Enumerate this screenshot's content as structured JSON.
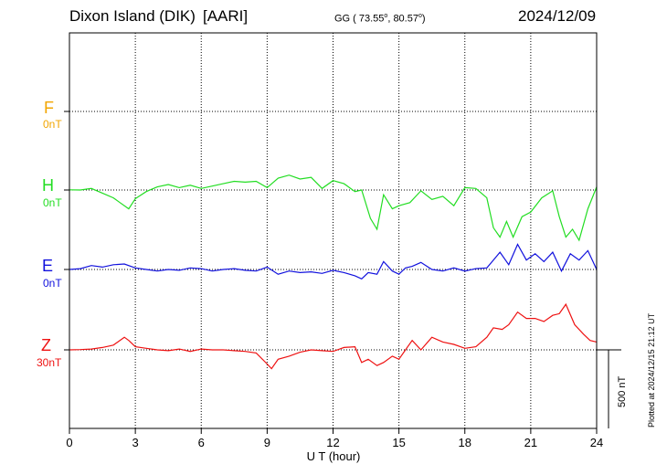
{
  "header": {
    "station": "Dixon Island (DIK)",
    "institute": "[AARI]",
    "coords_prefix": "GG ( 73.55",
    "deg1": "o",
    "coords_mid": ",  80.57",
    "deg2": "o",
    "coords_suffix": ")",
    "date": "2024/12/09"
  },
  "credit": "Plotted at 2024/12/15 21:12 UT",
  "colors": {
    "F": "#f2a500",
    "H": "#22dd22",
    "E": "#1111dd",
    "Z": "#ee1111"
  },
  "chart_data": {
    "type": "line",
    "xlabel": "U T (hour)",
    "xlim": [
      0,
      24
    ],
    "xticks": [
      "0",
      "3",
      "6",
      "9",
      "12",
      "15",
      "18",
      "21",
      "24"
    ],
    "grid": true,
    "scale_bar": "500 nT",
    "series": [
      {
        "name": "F",
        "baseline": "0nT",
        "color": "#f2a500",
        "x": [],
        "y": []
      },
      {
        "name": "H",
        "baseline": "0nT",
        "color": "#22dd22",
        "x": [
          0,
          0.5,
          1,
          1.5,
          2,
          2.3,
          2.7,
          3,
          3.5,
          4,
          4.5,
          5,
          5.5,
          6,
          6.5,
          7,
          7.5,
          8,
          8.5,
          9,
          9.5,
          10,
          10.5,
          11,
          11.5,
          12,
          12.5,
          13,
          13.3,
          13.7,
          14,
          14.3,
          14.7,
          15,
          15.5,
          16,
          16.5,
          17,
          17.5,
          18,
          18.5,
          19,
          19.3,
          19.6,
          19.9,
          20.2,
          20.6,
          21,
          21.5,
          22,
          22.3,
          22.6,
          22.9,
          23.2,
          23.6,
          24
        ],
        "y": [
          1,
          0,
          10,
          -20,
          -50,
          -80,
          -120,
          -55,
          -10,
          20,
          35,
          15,
          30,
          10,
          25,
          40,
          55,
          50,
          55,
          15,
          75,
          95,
          70,
          80,
          10,
          60,
          40,
          -10,
          0,
          -180,
          -250,
          -30,
          -120,
          -100,
          -80,
          -5,
          -60,
          -40,
          -100,
          15,
          10,
          -50,
          -240,
          -300,
          -200,
          -300,
          -170,
          -140,
          -50,
          -5,
          -170,
          -300,
          -250,
          -320,
          -120,
          20
        ]
      },
      {
        "name": "E",
        "baseline": "0nT",
        "color": "#1111dd",
        "x": [
          0,
          0.5,
          1,
          1.5,
          2,
          2.5,
          3,
          3.5,
          4,
          4.5,
          5,
          5.5,
          6,
          6.5,
          7,
          7.5,
          8,
          8.5,
          9,
          9.5,
          10,
          10.5,
          11,
          11.5,
          12,
          12.5,
          13,
          13.3,
          13.6,
          14,
          14.3,
          14.7,
          15,
          15.3,
          15.6,
          16,
          16.5,
          17,
          17.5,
          18,
          18.5,
          19,
          19.3,
          19.6,
          20,
          20.4,
          20.8,
          21.2,
          21.6,
          22,
          22.4,
          22.8,
          23.2,
          23.6,
          24
        ],
        "y": [
          0,
          5,
          25,
          15,
          30,
          35,
          10,
          0,
          -10,
          0,
          -5,
          10,
          5,
          -10,
          0,
          5,
          -5,
          -10,
          15,
          -30,
          -10,
          -20,
          -15,
          -25,
          -5,
          -20,
          -40,
          -60,
          -20,
          -30,
          50,
          -10,
          -30,
          10,
          20,
          45,
          0,
          -10,
          10,
          -10,
          5,
          10,
          60,
          110,
          30,
          160,
          60,
          100,
          50,
          110,
          -10,
          100,
          60,
          120,
          0
        ]
      },
      {
        "name": "Z",
        "baseline": "30nT",
        "color": "#ee1111",
        "x": [
          0,
          0.5,
          1,
          1.5,
          2,
          2.5,
          2.7,
          3,
          3.5,
          4,
          4.5,
          5,
          5.5,
          6,
          6.5,
          7,
          7.5,
          8,
          8.5,
          9,
          9.2,
          9.5,
          10,
          10.5,
          11,
          11.5,
          12,
          12.5,
          13,
          13.3,
          13.6,
          14,
          14.3,
          14.7,
          15,
          15.3,
          15.6,
          16,
          16.5,
          17,
          17.5,
          18,
          18.5,
          19,
          19.3,
          19.7,
          20,
          20.4,
          20.8,
          21.2,
          21.6,
          22,
          22.3,
          22.6,
          23,
          23.4,
          23.7,
          24
        ],
        "y": [
          0,
          2,
          5,
          15,
          30,
          80,
          60,
          20,
          10,
          0,
          -5,
          5,
          -10,
          5,
          0,
          0,
          -5,
          -10,
          -20,
          -90,
          -120,
          -60,
          -40,
          -15,
          0,
          -5,
          -10,
          15,
          20,
          -80,
          -60,
          -100,
          -80,
          -40,
          -60,
          0,
          60,
          0,
          80,
          50,
          35,
          10,
          20,
          80,
          140,
          130,
          160,
          240,
          200,
          200,
          180,
          220,
          230,
          290,
          160,
          100,
          60,
          50
        ]
      }
    ]
  }
}
